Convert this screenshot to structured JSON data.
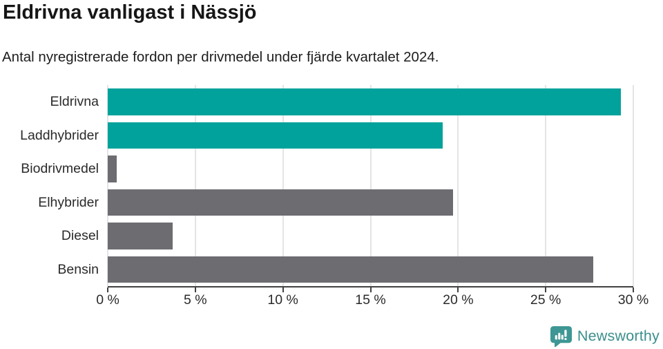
{
  "header": {
    "title": "Eldrivna vanligast i Nässjö",
    "subtitle": "Antal nyregistrerade fordon per drivmedel under fjärde kvartalet 2024."
  },
  "chart_data": {
    "type": "bar",
    "orientation": "horizontal",
    "title": "Eldrivna vanligast i Nässjö",
    "subtitle": "Antal nyregistrerade fordon per drivmedel under fjärde kvartalet 2024.",
    "categories": [
      "Eldrivna",
      "Laddhybrider",
      "Biodrivmedel",
      "Elhybrider",
      "Diesel",
      "Bensin"
    ],
    "values": [
      29.3,
      19.1,
      0.5,
      19.7,
      3.7,
      27.7
    ],
    "unit": "%",
    "xlabel": "",
    "ylabel": "",
    "xlim": [
      0,
      30
    ],
    "x_ticks": [
      0,
      5,
      10,
      15,
      20,
      25,
      30
    ],
    "x_tick_labels": [
      "0 %",
      "5 %",
      "10 %",
      "15 %",
      "20 %",
      "25 %",
      "30 %"
    ],
    "bar_colors": [
      "#00a29b",
      "#00a29b",
      "#6c6c71",
      "#6c6c71",
      "#6c6c71",
      "#6c6c71"
    ],
    "grid": true,
    "legend": "none"
  },
  "colors": {
    "accent_teal": "#00a29b",
    "bar_gray": "#6c6c71",
    "gridline": "#e4e4e6",
    "axis": "#414141",
    "brand_teal": "#3a8f8d"
  },
  "footer": {
    "brand_name": "Newsworthy"
  }
}
